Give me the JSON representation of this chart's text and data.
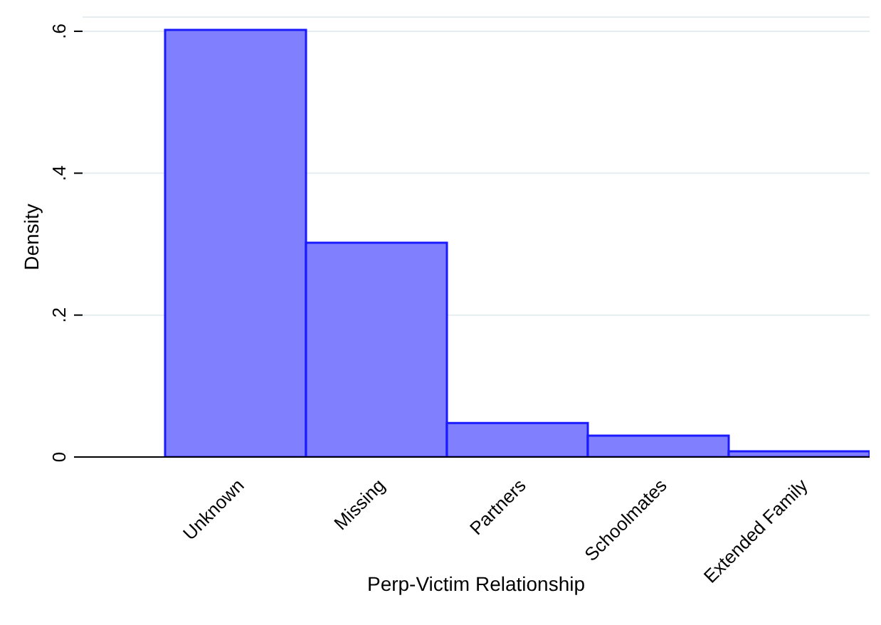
{
  "chart_data": {
    "type": "bar",
    "xlabel": "Perp-Victim Relationship",
    "ylabel": "Density",
    "categories": [
      "Unknown",
      "Missing",
      "Partners",
      "Schoolmates",
      "Extended Family"
    ],
    "values": [
      0.602,
      0.302,
      0.048,
      0.03,
      0.008
    ],
    "color": "#8080ff",
    "ylim": [
      0,
      0.62
    ],
    "yticks": [
      {
        "value": 0,
        "label": "0"
      },
      {
        "value": 0.2,
        "label": ".2"
      },
      {
        "value": 0.4,
        "label": ".4"
      },
      {
        "value": 0.6,
        "label": ".6"
      }
    ],
    "grid": "y"
  }
}
